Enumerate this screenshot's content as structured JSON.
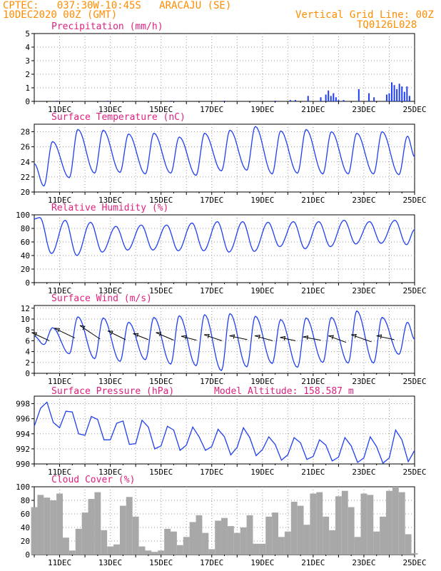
{
  "header": {
    "line1": "CPTEC:   037:30W-10:45S   ARACAJU (SE)",
    "line2": "10DEC2020 00Z (GMT)",
    "grid_note": "Vertical Grid Line: 00Z",
    "code": "TQ0126L028"
  },
  "colors": {
    "header": "#ff8c00",
    "panel_title": "#e0207f",
    "line": "#1f3ff0",
    "wind_arrow": "#000000",
    "cloud": "#a8a8a8",
    "grid": "#9a9a9a"
  },
  "time_axis": {
    "start": "10DEC2020 00Z",
    "end": "25DEC2020 00Z",
    "tick_labels": [
      "11DEC",
      "13DEC",
      "15DEC",
      "17DEC",
      "19DEC",
      "21DEC",
      "23DEC",
      "25DEC"
    ],
    "tick_days": [
      1,
      3,
      5,
      7,
      9,
      11,
      13,
      15
    ]
  },
  "chart_data": [
    {
      "type": "bar",
      "title": "Precipitation (mm/h)",
      "ylim": [
        0,
        5
      ],
      "yticks": [
        "0",
        "1",
        "2",
        "3",
        "4",
        "5"
      ],
      "grid": true,
      "color": "#1f3ff0",
      "x_unit": "days since 10DEC2020 00Z",
      "x": [
        0.9,
        2.9,
        5.4,
        7.5,
        9.5,
        10.1,
        10.3,
        10.8,
        11.3,
        11.5,
        11.6,
        11.7,
        11.8,
        11.9,
        12.0,
        12.2,
        12.8,
        13.2,
        13.4,
        13.9,
        14.0,
        14.1,
        14.2,
        14.3,
        14.4,
        14.5,
        14.6,
        14.7,
        14.8
      ],
      "values": [
        0.05,
        0.05,
        0.05,
        0.05,
        0.05,
        0.1,
        0.1,
        0.4,
        0.3,
        0.5,
        0.8,
        0.4,
        0.6,
        0.3,
        0.1,
        0.1,
        0.9,
        0.6,
        0.3,
        0.5,
        0.6,
        1.4,
        1.2,
        0.9,
        1.3,
        1.1,
        0.7,
        1.1,
        0.4
      ]
    },
    {
      "type": "line",
      "title": "Surface Temperature (nC)",
      "ylim": [
        20,
        29
      ],
      "yticks": [
        "20",
        "22",
        "24",
        "26",
        "28"
      ],
      "grid": true,
      "color": "#1f3ff0",
      "min_values": [
        20.8,
        21.9,
        22.5,
        22.6,
        22.4,
        22.5,
        22.2,
        22.8,
        22.9,
        22.4,
        22.5,
        22.4,
        22.4,
        22.4,
        22.3
      ],
      "max_values": [
        26.7,
        28.3,
        28.2,
        27.7,
        27.8,
        27.3,
        27.8,
        28.2,
        28.7,
        28.1,
        28.3,
        28.0,
        27.8,
        28.0,
        27.4
      ],
      "end_value": 24.7
    },
    {
      "type": "line",
      "title": "Relative Humidity (%)",
      "ylim": [
        0,
        100
      ],
      "yticks": [
        "0",
        "20",
        "40",
        "60",
        "80",
        "100"
      ],
      "grid": true,
      "color": "#1f3ff0",
      "max_values": [
        96,
        92,
        89,
        83,
        85,
        85,
        88,
        90,
        90,
        89,
        90,
        90,
        92,
        90,
        92
      ],
      "min_values": [
        43,
        40,
        45,
        48,
        48,
        47,
        47,
        45,
        46,
        53,
        50,
        53,
        57,
        58,
        56
      ],
      "end_value": 78
    },
    {
      "type": "line",
      "title": "Surface Wind (m/s)",
      "ylim": [
        0,
        12.5
      ],
      "yticks": [
        "0",
        "2",
        "4",
        "6",
        "8",
        "10",
        "12"
      ],
      "grid": true,
      "color": "#1f3ff0",
      "max_values": [
        8.4,
        10.4,
        10.2,
        9.4,
        10.3,
        10.6,
        10.8,
        11.0,
        10.5,
        9.9,
        10.2,
        10.3,
        11.5,
        10.3,
        9.4
      ],
      "min_values": [
        5.3,
        3.6,
        2.7,
        2.2,
        2.5,
        1.7,
        1.4,
        0.5,
        1.2,
        1.8,
        1.1,
        2.0,
        1.9,
        1.9,
        3.5
      ],
      "end_value": 6.3,
      "wind_arrows": {
        "base_speed": [
          6.0,
          6.5,
          6.3,
          6.2,
          6.2,
          6.1,
          6.1,
          6.0,
          6.2,
          6.0,
          6.0,
          6.1,
          5.7,
          5.8,
          6.2
        ],
        "tip_speed": [
          7.5,
          8.3,
          8.8,
          7.8,
          7.3,
          7.5,
          6.8,
          7.1,
          6.9,
          6.9,
          6.6,
          6.7,
          6.9,
          7.1,
          6.9
        ],
        "arrow_days": [
          0.6,
          1.6,
          2.6,
          3.6,
          4.5,
          5.5,
          6.4,
          7.4,
          8.4,
          9.4,
          10.3,
          11.3,
          12.3,
          13.3,
          14.2
        ],
        "arrow_dx_days": [
          -0.7,
          -0.8,
          -0.8,
          -0.7,
          -0.6,
          -0.7,
          -0.6,
          -0.7,
          -0.7,
          -0.7,
          -0.6,
          -0.7,
          -0.7,
          -0.8,
          -0.7
        ]
      }
    },
    {
      "type": "line",
      "title": "Surface Pressure (hPa)",
      "annotation": "Model Altitude: 158.587  m",
      "ylim": [
        990,
        999
      ],
      "yticks": [
        "990",
        "992",
        "994",
        "996",
        "998"
      ],
      "grid": true,
      "color": "#1f3ff0",
      "x_unit": "days since 10DEC2020 00Z",
      "x": [
        0,
        0.25,
        0.5,
        0.75,
        1,
        1.25,
        1.5,
        1.75,
        2,
        2.25,
        2.5,
        2.75,
        3,
        3.25,
        3.5,
        3.75,
        4,
        4.25,
        4.5,
        4.75,
        5,
        5.25,
        5.5,
        5.75,
        6,
        6.25,
        6.5,
        6.75,
        7,
        7.25,
        7.5,
        7.75,
        8,
        8.25,
        8.5,
        8.75,
        9,
        9.25,
        9.5,
        9.75,
        10,
        10.25,
        10.5,
        10.75,
        11,
        11.25,
        11.5,
        11.75,
        12,
        12.25,
        12.5,
        12.75,
        13,
        13.25,
        13.5,
        13.75,
        14,
        14.25,
        14.5,
        14.75,
        15
      ],
      "values": [
        995.0,
        997.4,
        998.2,
        995.5,
        994.8,
        997.0,
        996.9,
        994.0,
        993.8,
        996.3,
        995.9,
        993.2,
        993.2,
        995.4,
        995.7,
        992.6,
        992.7,
        995.8,
        994.9,
        992.0,
        992.4,
        995.0,
        994.5,
        991.8,
        992.5,
        994.9,
        993.6,
        991.8,
        992.3,
        994.6,
        993.6,
        991.2,
        992.2,
        994.8,
        993.5,
        991.1,
        991.9,
        993.6,
        992.6,
        990.5,
        991.2,
        993.5,
        992.8,
        990.6,
        991.0,
        993.2,
        992.5,
        990.4,
        990.9,
        993.5,
        992.4,
        990.2,
        990.8,
        993.6,
        992.3,
        990.1,
        990.8,
        994.5,
        993.2,
        990.3,
        991.8
      ]
    },
    {
      "type": "area",
      "title": "Cloud Cover (%)",
      "ylim": [
        0,
        100
      ],
      "yticks": [
        "0",
        "20",
        "40",
        "60",
        "80",
        "100"
      ],
      "grid": true,
      "color": "#a8a8a8",
      "x_unit": "days since 10DEC2020 00Z",
      "x": [
        0,
        0.25,
        0.5,
        0.75,
        1,
        1.25,
        1.5,
        1.75,
        2,
        2.25,
        2.5,
        2.75,
        3,
        3.25,
        3.5,
        3.75,
        4,
        4.25,
        4.5,
        4.75,
        5,
        5.25,
        5.5,
        5.75,
        6,
        6.25,
        6.5,
        6.75,
        7,
        7.25,
        7.5,
        7.75,
        8,
        8.25,
        8.5,
        8.75,
        9,
        9.25,
        9.5,
        9.75,
        10,
        10.25,
        10.5,
        10.75,
        11,
        11.25,
        11.5,
        11.75,
        12,
        12.25,
        12.5,
        12.75,
        13,
        13.25,
        13.5,
        13.75,
        14,
        14.25,
        14.5,
        14.75,
        15
      ],
      "values": [
        70,
        88,
        84,
        80,
        90,
        25,
        6,
        38,
        62,
        82,
        92,
        36,
        12,
        15,
        72,
        85,
        56,
        12,
        6,
        4,
        6,
        38,
        34,
        14,
        26,
        48,
        58,
        32,
        8,
        50,
        54,
        42,
        32,
        40,
        58,
        16,
        16,
        56,
        62,
        26,
        34,
        78,
        72,
        44,
        90,
        92,
        56,
        36,
        86,
        94,
        70,
        26,
        90,
        88,
        34,
        56,
        94,
        100,
        92,
        30,
        2
      ]
    }
  ]
}
